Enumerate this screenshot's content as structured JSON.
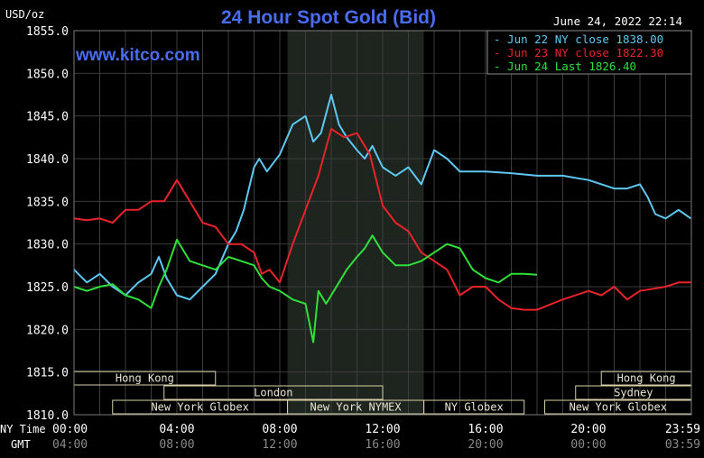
{
  "chart_data": {
    "type": "line",
    "title": "24 Hour Spot Gold (Bid)",
    "units_label": "USD/oz",
    "watermark": "www.kitco.com",
    "timestamp": "June 24, 2022 22:14",
    "ylim": [
      1810.0,
      1855.0
    ],
    "y_ticks": [
      "1855.0",
      "1850.0",
      "1845.0",
      "1840.0",
      "1835.0",
      "1830.0",
      "1825.0",
      "1820.0",
      "1815.0",
      "1810.0"
    ],
    "y_tick_values": [
      1855,
      1850,
      1845,
      1840,
      1835,
      1830,
      1825,
      1820,
      1815,
      1810
    ],
    "xlim": [
      0,
      24
    ],
    "x_axis": {
      "ny_label": "NY Time",
      "gmt_label": "GMT",
      "ny_ticks": [
        "00:00",
        "04:00",
        "08:00",
        "12:00",
        "16:00",
        "20:00",
        "23:59"
      ],
      "gmt_ticks": [
        "04:00",
        "08:00",
        "12:00",
        "16:00",
        "20:00",
        "00:00",
        "03:59"
      ],
      "tick_hours": [
        0,
        4,
        8,
        12,
        16,
        20,
        23.98
      ]
    },
    "shaded_session_hours": [
      8.3,
      13.6
    ],
    "sessions": [
      {
        "label": "Hong Kong",
        "start": 0,
        "end": 5.5,
        "row": 0
      },
      {
        "label": "Hong Kong",
        "start": 20.5,
        "end": 24,
        "row": 0
      },
      {
        "label": "London",
        "start": 3.5,
        "end": 12,
        "row": 1
      },
      {
        "label": "Sydney",
        "start": 19.5,
        "end": 24,
        "row": 1
      },
      {
        "label": "New York Globex",
        "start": 1.5,
        "end": 8.3,
        "row": 2
      },
      {
        "label": "New York NYMEX",
        "start": 8.3,
        "end": 13.6,
        "row": 2
      },
      {
        "label": "NY Globex",
        "start": 13.6,
        "end": 17.5,
        "row": 2
      },
      {
        "label": "New York Globex",
        "start": 18.3,
        "end": 24,
        "row": 2
      }
    ],
    "legend": [
      {
        "label": "Jun 22 NY close 1838.00",
        "color": "#5ec8f0"
      },
      {
        "label": "Jun 23 NY close 1822.30",
        "color": "#e8232a"
      },
      {
        "label": "Jun 24 Last 1826.40",
        "color": "#2fe03a"
      }
    ],
    "series": [
      {
        "name": "Jun 22 NY close 1838.00",
        "color": "#5ec8f0",
        "x": [
          0,
          0.5,
          1,
          1.5,
          2,
          2.5,
          3,
          3.3,
          3.6,
          4,
          4.5,
          5,
          5.5,
          6,
          6.3,
          6.6,
          7,
          7.2,
          7.5,
          8,
          8.5,
          9,
          9.3,
          9.6,
          10,
          10.3,
          10.6,
          11,
          11.3,
          11.6,
          12,
          12.5,
          13,
          13.5,
          14,
          14.5,
          15,
          16,
          17,
          18,
          19,
          20,
          21,
          21.5,
          22,
          22.3,
          22.6,
          23,
          23.5,
          23.98
        ],
        "y": [
          1827.0,
          1825.5,
          1826.5,
          1825.0,
          1824.0,
          1825.5,
          1826.5,
          1828.5,
          1826.0,
          1824.0,
          1823.5,
          1825.0,
          1826.5,
          1830.0,
          1831.5,
          1834.0,
          1839.0,
          1840.0,
          1838.5,
          1840.5,
          1844.0,
          1845.0,
          1842.0,
          1843.0,
          1847.5,
          1844.0,
          1842.5,
          1841.0,
          1840.0,
          1841.5,
          1839.0,
          1838.0,
          1839.0,
          1837.0,
          1841.0,
          1840.0,
          1838.5,
          1838.5,
          1838.3,
          1838.0,
          1838.0,
          1837.5,
          1836.5,
          1836.5,
          1837.0,
          1835.5,
          1833.5,
          1833.0,
          1834.0,
          1833.0
        ]
      },
      {
        "name": "Jun 23 NY close 1822.30",
        "color": "#e8232a",
        "x": [
          0,
          0.5,
          1,
          1.5,
          2,
          2.5,
          3,
          3.5,
          4,
          4.5,
          5,
          5.5,
          6,
          6.5,
          7,
          7.3,
          7.6,
          8,
          8.5,
          9,
          9.5,
          10,
          10.5,
          11,
          11.5,
          12,
          12.5,
          13,
          13.5,
          14,
          14.5,
          15,
          15.5,
          16,
          16.5,
          17,
          17.5,
          18,
          19,
          20,
          20.5,
          21,
          21.5,
          22,
          23,
          23.5,
          23.98
        ],
        "y": [
          1833.0,
          1832.8,
          1833.0,
          1832.5,
          1834.0,
          1834.0,
          1835.0,
          1835.0,
          1837.5,
          1835.0,
          1832.5,
          1832.0,
          1830.0,
          1830.0,
          1829.0,
          1826.5,
          1827.0,
          1825.5,
          1830.0,
          1834.0,
          1838.0,
          1843.5,
          1842.5,
          1843.0,
          1840.5,
          1834.5,
          1832.5,
          1831.5,
          1829.0,
          1828.0,
          1827.0,
          1824.0,
          1825.0,
          1825.0,
          1823.5,
          1822.5,
          1822.3,
          1822.3,
          1823.5,
          1824.5,
          1824.0,
          1825.0,
          1823.5,
          1824.5,
          1825.0,
          1825.5,
          1825.5
        ]
      },
      {
        "name": "Jun 24 Last 1826.40",
        "color": "#2fe03a",
        "x": [
          0,
          0.5,
          1,
          1.5,
          2,
          2.5,
          3,
          3.3,
          3.6,
          4,
          4.5,
          5,
          5.5,
          6,
          6.5,
          7,
          7.3,
          7.6,
          8,
          8.5,
          9,
          9.3,
          9.5,
          9.8,
          10,
          10.3,
          10.6,
          11,
          11.3,
          11.6,
          12,
          12.5,
          13,
          13.5,
          14,
          14.5,
          15,
          15.5,
          16,
          16.5,
          17,
          17.5,
          18
        ],
        "y": [
          1825.0,
          1824.5,
          1825.0,
          1825.3,
          1824.0,
          1823.5,
          1822.5,
          1825.0,
          1827.0,
          1830.5,
          1828.0,
          1827.5,
          1827.0,
          1828.5,
          1828.0,
          1827.5,
          1826.0,
          1825.0,
          1824.5,
          1823.5,
          1823.0,
          1818.5,
          1824.5,
          1823.0,
          1824.0,
          1825.5,
          1827.0,
          1828.5,
          1829.5,
          1831.0,
          1829.0,
          1827.5,
          1827.5,
          1828.0,
          1829.0,
          1830.0,
          1829.5,
          1827.0,
          1826.0,
          1825.5,
          1826.5,
          1826.5,
          1826.4
        ]
      }
    ]
  }
}
